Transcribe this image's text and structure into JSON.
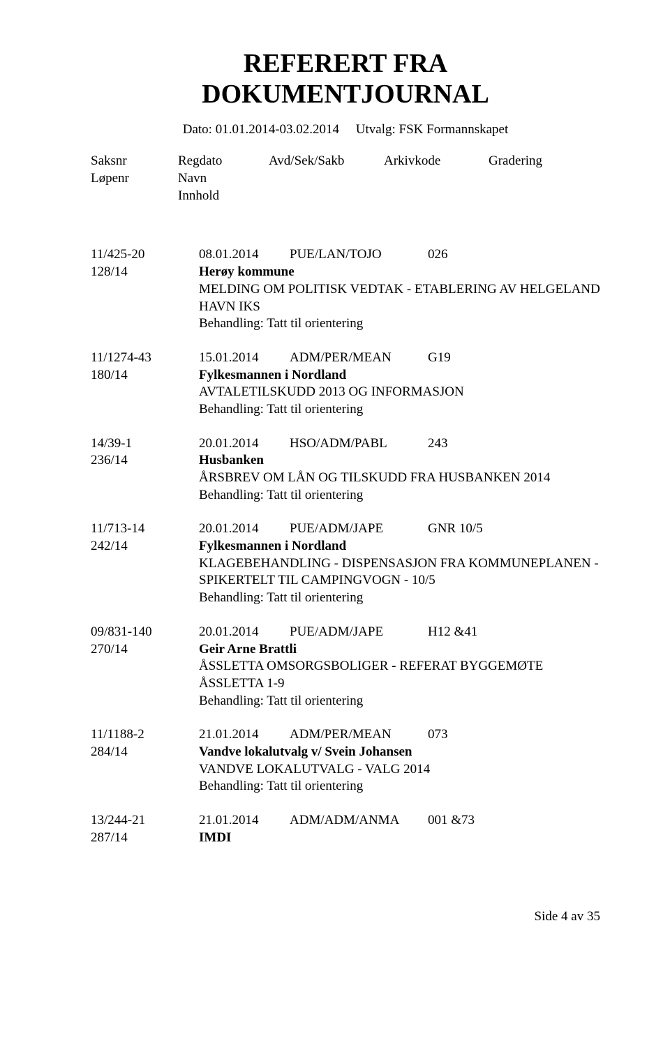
{
  "title_line1": "REFERERT FRA",
  "title_line2": "DOKUMENTJOURNAL",
  "meta": {
    "dato_label": "Dato:",
    "dato_value": "01.01.2014-03.02.2014",
    "utvalg_label": "Utvalg:",
    "utvalg_value": "FSK Formannskapet"
  },
  "headers": {
    "saksnr": "Saksnr",
    "lopenr": "Løpenr",
    "regdato": "Regdato",
    "navn": "Navn",
    "innhold": "Innhold",
    "avdseksakb": "Avd/Sek/Sakb",
    "arkivkode": "Arkivkode",
    "gradering": "Gradering"
  },
  "entries": [
    {
      "saksnr": "11/425-20",
      "lopenr": "128/14",
      "regdato": "08.01.2014",
      "dept": "PUE/LAN/TOJO",
      "arch": "026",
      "navn": "Herøy kommune",
      "desc": "MELDING OM POLITISK VEDTAK - ETABLERING AV HELGELAND HAVN IKS",
      "beh": "Behandling: Tatt til orientering"
    },
    {
      "saksnr": "11/1274-43",
      "lopenr": "180/14",
      "regdato": "15.01.2014",
      "dept": "ADM/PER/MEAN",
      "arch": "G19",
      "navn": "Fylkesmannen i Nordland",
      "desc": "AVTALETILSKUDD 2013 OG INFORMASJON",
      "beh": "Behandling: Tatt til orientering"
    },
    {
      "saksnr": "14/39-1",
      "lopenr": "236/14",
      "regdato": "20.01.2014",
      "dept": "HSO/ADM/PABL",
      "arch": "243",
      "navn": "Husbanken",
      "desc": "ÅRSBREV OM LÅN OG TILSKUDD FRA HUSBANKEN 2014",
      "beh": "Behandling: Tatt til orientering"
    },
    {
      "saksnr": "11/713-14",
      "lopenr": "242/14",
      "regdato": "20.01.2014",
      "dept": "PUE/ADM/JAPE",
      "arch": "GNR 10/5",
      "navn": "Fylkesmannen i Nordland",
      "desc": "KLAGEBEHANDLING - DISPENSASJON FRA KOMMUNEPLANEN - SPIKERTELT TIL CAMPINGVOGN - 10/5",
      "beh": "Behandling: Tatt til orientering"
    },
    {
      "saksnr": "09/831-140",
      "lopenr": "270/14",
      "regdato": "20.01.2014",
      "dept": "PUE/ADM/JAPE",
      "arch": "H12 &41",
      "navn": "Geir Arne Brattli",
      "desc": "ÅSSLETTA OMSORGSBOLIGER - REFERAT BYGGEMØTE ÅSSLETTA 1-9",
      "beh": "Behandling: Tatt til orientering"
    },
    {
      "saksnr": "11/1188-2",
      "lopenr": "284/14",
      "regdato": "21.01.2014",
      "dept": "ADM/PER/MEAN",
      "arch": "073",
      "navn": "Vandve lokalutvalg v/ Svein Johansen",
      "desc": "VANDVE LOKALUTVALG - VALG 2014",
      "beh": "Behandling: Tatt til orientering"
    },
    {
      "saksnr": "13/244-21",
      "lopenr": "287/14",
      "regdato": "21.01.2014",
      "dept": "ADM/ADM/ANMA",
      "arch": "001 &73",
      "navn": "IMDI",
      "desc": "",
      "beh": ""
    }
  ],
  "footer": "Side 4 av 35"
}
